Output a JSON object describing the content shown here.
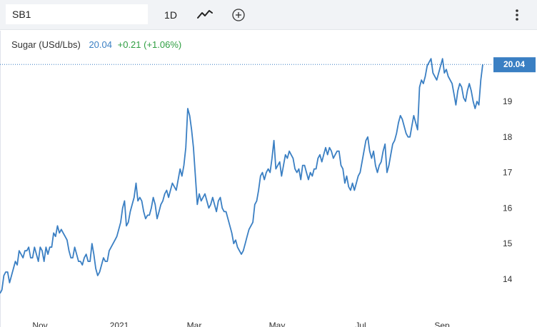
{
  "toolbar": {
    "symbol": "SB1",
    "interval": "1D",
    "chart_type_icon": "line-chart-icon",
    "add_icon": "add-circle-icon",
    "menu_icon": "more-vertical-icon"
  },
  "legend": {
    "name": "Sugar (USd/Lbs)",
    "value": "20.04",
    "change": "+0.21 (+1.06%)"
  },
  "colors": {
    "line": "#3a7fc3",
    "positive": "#2e9e41",
    "toolbar_bg": "#f1f3f6"
  },
  "chart_data": {
    "type": "line",
    "title": "",
    "xlabel": "",
    "ylabel": "",
    "x_tick_labels": [
      "Nov",
      "2021",
      "Mar",
      "May",
      "Jul",
      "Sep"
    ],
    "y_tick_labels": [
      "14",
      "15",
      "16",
      "17",
      "18",
      "19"
    ],
    "ylim": [
      13.0,
      20.9
    ],
    "last_value_label": "20.04",
    "grid": false,
    "series": [
      {
        "values": [
          13.6,
          13.7,
          14.1,
          14.2,
          14.2,
          13.9,
          14.1,
          14.3,
          14.5,
          14.4,
          14.8,
          14.7,
          14.6,
          14.8,
          14.8,
          14.9,
          14.6,
          14.6,
          14.9,
          14.7,
          14.5,
          14.9,
          14.8,
          14.5,
          14.9,
          14.7,
          14.9,
          14.9,
          15.3,
          15.2,
          15.5,
          15.3,
          15.4,
          15.3,
          15.2,
          15.1,
          14.8,
          14.6,
          14.6,
          14.9,
          14.7,
          14.5,
          14.5,
          14.4,
          14.6,
          14.7,
          14.5,
          14.5,
          15.0,
          14.7,
          14.3,
          14.1,
          14.2,
          14.4,
          14.6,
          14.5,
          14.5,
          14.8,
          14.9,
          15.0,
          15.1,
          15.2,
          15.4,
          15.6,
          16.0,
          16.2,
          15.5,
          15.6,
          15.9,
          16.1,
          16.3,
          16.7,
          16.2,
          16.3,
          16.2,
          15.9,
          15.7,
          15.8,
          15.8,
          16.0,
          16.3,
          16.1,
          15.7,
          15.9,
          16.1,
          16.2,
          16.4,
          16.5,
          16.3,
          16.5,
          16.7,
          16.6,
          16.5,
          16.8,
          17.1,
          16.9,
          17.2,
          17.7,
          18.8,
          18.6,
          18.2,
          17.7,
          16.9,
          16.1,
          16.4,
          16.2,
          16.3,
          16.4,
          16.2,
          16.0,
          16.1,
          16.3,
          16.1,
          15.9,
          16.2,
          16.3,
          16.0,
          15.9,
          15.9,
          15.7,
          15.5,
          15.3,
          15.0,
          15.1,
          14.9,
          14.8,
          14.7,
          14.8,
          15.0,
          15.2,
          15.4,
          15.5,
          15.6,
          16.1,
          16.2,
          16.5,
          16.9,
          17.0,
          16.8,
          17.0,
          17.1,
          17.0,
          17.4,
          17.9,
          17.1,
          17.2,
          17.3,
          16.9,
          17.2,
          17.5,
          17.4,
          17.6,
          17.5,
          17.4,
          17.1,
          17.0,
          17.1,
          16.8,
          17.2,
          17.2,
          17.0,
          16.8,
          17.0,
          16.9,
          17.1,
          17.1,
          17.4,
          17.5,
          17.3,
          17.5,
          17.7,
          17.5,
          17.7,
          17.6,
          17.4,
          17.5,
          17.6,
          17.6,
          17.2,
          17.1,
          16.7,
          16.9,
          16.6,
          16.5,
          16.7,
          16.5,
          16.7,
          16.9,
          17.0,
          17.3,
          17.6,
          17.9,
          18.0,
          17.6,
          17.4,
          17.6,
          17.2,
          17.0,
          17.2,
          17.3,
          17.6,
          17.8,
          17.0,
          17.2,
          17.5,
          17.8,
          17.9,
          18.1,
          18.4,
          18.6,
          18.5,
          18.3,
          18.1,
          18.0,
          18.0,
          18.3,
          18.6,
          18.4,
          18.2,
          19.4,
          19.6,
          19.5,
          19.7,
          20.0,
          20.1,
          20.2,
          19.8,
          19.7,
          19.6,
          19.8,
          20.0,
          20.2,
          19.8,
          19.9,
          19.7,
          19.6,
          19.5,
          19.2,
          18.9,
          19.3,
          19.5,
          19.4,
          19.1,
          19.0,
          19.3,
          19.5,
          19.3,
          19.0,
          18.8,
          19.0,
          18.9,
          19.6,
          20.04
        ]
      }
    ]
  }
}
